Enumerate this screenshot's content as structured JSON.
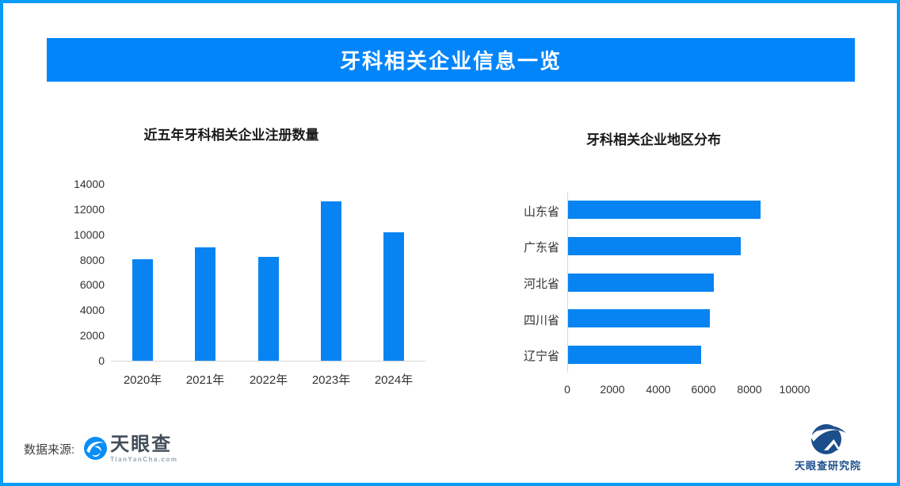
{
  "header": {
    "title": "牙科相关企业信息一览"
  },
  "footer": {
    "source_label": "数据来源:",
    "brand_name": "天眼查",
    "brand_domain": "TianYanCha.com",
    "institute": "天眼查研究院"
  },
  "colors": {
    "border": "#099CF6",
    "banner": "#0285FB",
    "bar": "#0884F2",
    "axis": "#D9D9D9"
  },
  "chart_data": [
    {
      "type": "bar",
      "orientation": "vertical",
      "title": "近五年牙科相关企业注册数量",
      "categories": [
        "2020年",
        "2021年",
        "2022年",
        "2023年",
        "2024年"
      ],
      "values": [
        8050,
        8950,
        8200,
        12600,
        10200
      ],
      "ylim": [
        0,
        14000
      ],
      "yticks": [
        0,
        2000,
        4000,
        6000,
        8000,
        10000,
        12000,
        14000
      ],
      "grid": false,
      "legend": false
    },
    {
      "type": "bar",
      "orientation": "horizontal",
      "title": "牙科相关企业地区分布",
      "categories": [
        "山东省",
        "广东省",
        "河北省",
        "四川省",
        "辽宁省"
      ],
      "values": [
        8450,
        7600,
        6400,
        6230,
        5850
      ],
      "xlim": [
        0,
        10000
      ],
      "xticks": [
        0,
        2000,
        4000,
        6000,
        8000,
        10000
      ],
      "grid": false,
      "legend": false
    }
  ]
}
